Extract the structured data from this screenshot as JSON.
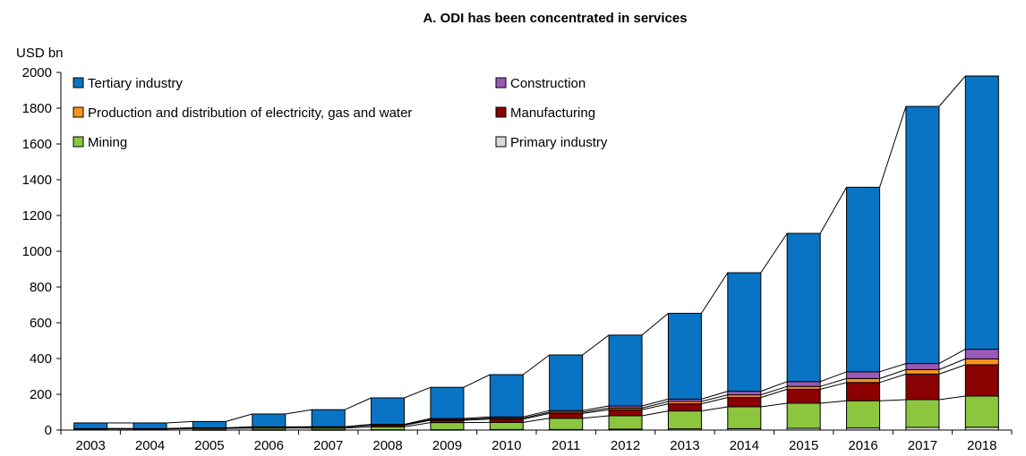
{
  "chart_data": {
    "type": "bar",
    "stacked": true,
    "title": "A. ODI has been concentrated  in services",
    "unit_label": "USD bn",
    "ylim": [
      0,
      2000
    ],
    "yticks": [
      0,
      200,
      400,
      600,
      800,
      1000,
      1200,
      1400,
      1600,
      1800,
      2000
    ],
    "grid": false,
    "legend_position": "top-left (inside plot)",
    "categories": [
      "2003",
      "2004",
      "2005",
      "2006",
      "2007",
      "2008",
      "2009",
      "2010",
      "2011",
      "2012",
      "2013",
      "2014",
      "2015",
      "2016",
      "2017",
      "2018"
    ],
    "series": [
      {
        "name": "Primary industry",
        "color": "#d9d9d9",
        "values": [
          0,
          0,
          1,
          1,
          1,
          2,
          2,
          3,
          3,
          5,
          7,
          8,
          10,
          12,
          15,
          16
        ]
      },
      {
        "name": "Mining",
        "color": "#8cc63f",
        "values": [
          6,
          6,
          8,
          10,
          10,
          16,
          40,
          40,
          63,
          75,
          100,
          122,
          140,
          152,
          155,
          174
        ]
      },
      {
        "name": "Manufacturing",
        "color": "#8b0000",
        "values": [
          2,
          2,
          3,
          4,
          5,
          9,
          13,
          18,
          27,
          34,
          40,
          52,
          78,
          102,
          143,
          175
        ]
      },
      {
        "name": "Production and distribution of electricity, gas and water",
        "color": "#f7941d",
        "values": [
          0,
          0,
          0,
          1,
          1,
          2,
          4,
          6,
          7,
          9,
          13,
          15,
          16,
          22,
          25,
          33
        ]
      },
      {
        "name": "Construction",
        "color": "#9b59b6",
        "values": [
          0,
          0,
          1,
          2,
          2,
          3,
          6,
          7,
          9,
          12,
          13,
          20,
          27,
          38,
          34,
          54
        ]
      },
      {
        "name": "Tertiary industry",
        "color": "#0a74c4",
        "values": [
          32,
          32,
          35,
          72,
          95,
          148,
          174,
          236,
          311,
          396,
          480,
          663,
          829,
          1032,
          1438,
          1528
        ]
      }
    ]
  },
  "legend": {
    "items": [
      {
        "label": "Tertiary industry",
        "color": "#0a74c4"
      },
      {
        "label": "Construction",
        "color": "#9b59b6"
      },
      {
        "label": "Production and distribution of electricity, gas and water",
        "color": "#f7941d"
      },
      {
        "label": "Manufacturing",
        "color": "#8b0000"
      },
      {
        "label": "Mining",
        "color": "#8cc63f"
      },
      {
        "label": "Primary industry",
        "color": "#d9d9d9"
      }
    ]
  }
}
